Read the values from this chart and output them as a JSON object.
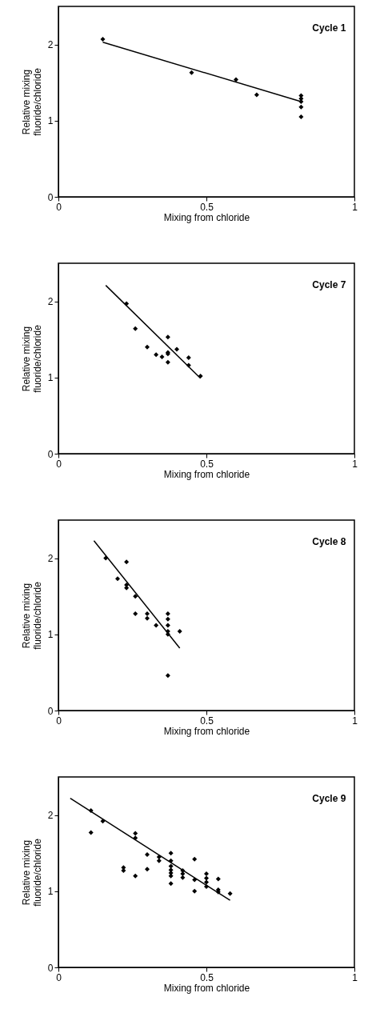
{
  "chart_data": [
    {
      "type": "scatter",
      "title": "Cycle 1",
      "xlabel": "Mixing from chloride",
      "ylabel": "Relative mixing\nfluoride/chloride",
      "xlim": [
        0,
        1
      ],
      "ylim": [
        0,
        2.5
      ],
      "xticks": [
        0,
        0.5,
        1
      ],
      "yticks": [
        0,
        1,
        2
      ],
      "grid": false,
      "series": [
        {
          "color": "#000000",
          "marker": "diamond",
          "x": [
            0.15,
            0.45,
            0.6,
            0.67,
            0.82,
            0.82,
            0.82,
            0.82,
            0.82
          ],
          "values": [
            2.07,
            1.63,
            1.54,
            1.34,
            1.33,
            1.29,
            1.25,
            1.18,
            1.05
          ]
        },
        {
          "type": "line",
          "marker": "none",
          "color": "#000000",
          "x": [
            0.15,
            0.82
          ],
          "values": [
            2.03,
            1.25
          ]
        }
      ]
    },
    {
      "type": "scatter",
      "title": "Cycle 7",
      "xlabel": "Mixing from chloride",
      "ylabel": "Relative mixing\nfluoride/chloride",
      "xlim": [
        0,
        1
      ],
      "ylim": [
        0,
        2.5
      ],
      "xticks": [
        0,
        0.5,
        1
      ],
      "yticks": [
        0,
        1,
        2
      ],
      "grid": false,
      "series": [
        {
          "color": "#000000",
          "marker": "diamond",
          "x": [
            0.23,
            0.26,
            0.3,
            0.33,
            0.35,
            0.37,
            0.37,
            0.37,
            0.37,
            0.4,
            0.44,
            0.44,
            0.48
          ],
          "values": [
            1.97,
            1.64,
            1.4,
            1.3,
            1.27,
            1.53,
            1.33,
            1.31,
            1.2,
            1.37,
            1.26,
            1.16,
            1.02
          ]
        },
        {
          "type": "line",
          "marker": "none",
          "color": "#000000",
          "x": [
            0.16,
            0.48
          ],
          "values": [
            2.21,
            0.99
          ]
        }
      ]
    },
    {
      "type": "scatter",
      "title": "Cycle 8",
      "xlabel": "Mixing from chloride",
      "ylabel": "Relative mixing\nfluoride/chloride",
      "xlim": [
        0,
        1
      ],
      "ylim": [
        0,
        2.5
      ],
      "xticks": [
        0,
        0.5,
        1
      ],
      "yticks": [
        0,
        1,
        2
      ],
      "grid": false,
      "series": [
        {
          "color": "#000000",
          "marker": "diamond",
          "x": [
            0.16,
            0.2,
            0.23,
            0.23,
            0.23,
            0.26,
            0.26,
            0.3,
            0.3,
            0.33,
            0.37,
            0.37,
            0.37,
            0.37,
            0.37,
            0.37,
            0.41
          ],
          "values": [
            2.0,
            1.73,
            1.95,
            1.65,
            1.61,
            1.5,
            1.27,
            1.27,
            1.21,
            1.12,
            1.27,
            1.2,
            1.12,
            1.04,
            1.0,
            0.46,
            1.04
          ]
        },
        {
          "type": "line",
          "marker": "none",
          "color": "#000000",
          "x": [
            0.12,
            0.41
          ],
          "values": [
            2.23,
            0.82
          ]
        }
      ]
    },
    {
      "type": "scatter",
      "title": "Cycle 9",
      "xlabel": "Mixing from chloride",
      "ylabel": "Relative mixing\nfluoride/chloride",
      "xlim": [
        0,
        1
      ],
      "ylim": [
        0,
        2.5
      ],
      "xticks": [
        0,
        0.5,
        1
      ],
      "yticks": [
        0,
        1,
        2
      ],
      "grid": false,
      "series": [
        {
          "color": "#000000",
          "marker": "diamond",
          "x": [
            0.11,
            0.11,
            0.15,
            0.22,
            0.22,
            0.26,
            0.26,
            0.26,
            0.3,
            0.3,
            0.34,
            0.34,
            0.38,
            0.38,
            0.38,
            0.38,
            0.38,
            0.38,
            0.38,
            0.42,
            0.42,
            0.42,
            0.46,
            0.46,
            0.46,
            0.5,
            0.5,
            0.5,
            0.5,
            0.54,
            0.54,
            0.54,
            0.58
          ],
          "values": [
            2.06,
            1.77,
            1.92,
            1.31,
            1.27,
            1.76,
            1.7,
            1.2,
            1.48,
            1.29,
            1.45,
            1.4,
            1.5,
            1.4,
            1.33,
            1.28,
            1.24,
            1.2,
            1.1,
            1.27,
            1.23,
            1.18,
            1.42,
            1.15,
            1.0,
            1.23,
            1.17,
            1.12,
            1.06,
            1.16,
            1.02,
            0.99,
            0.97
          ]
        },
        {
          "type": "line",
          "marker": "none",
          "color": "#000000",
          "x": [
            0.04,
            0.58
          ],
          "values": [
            2.22,
            0.88
          ]
        }
      ]
    }
  ]
}
